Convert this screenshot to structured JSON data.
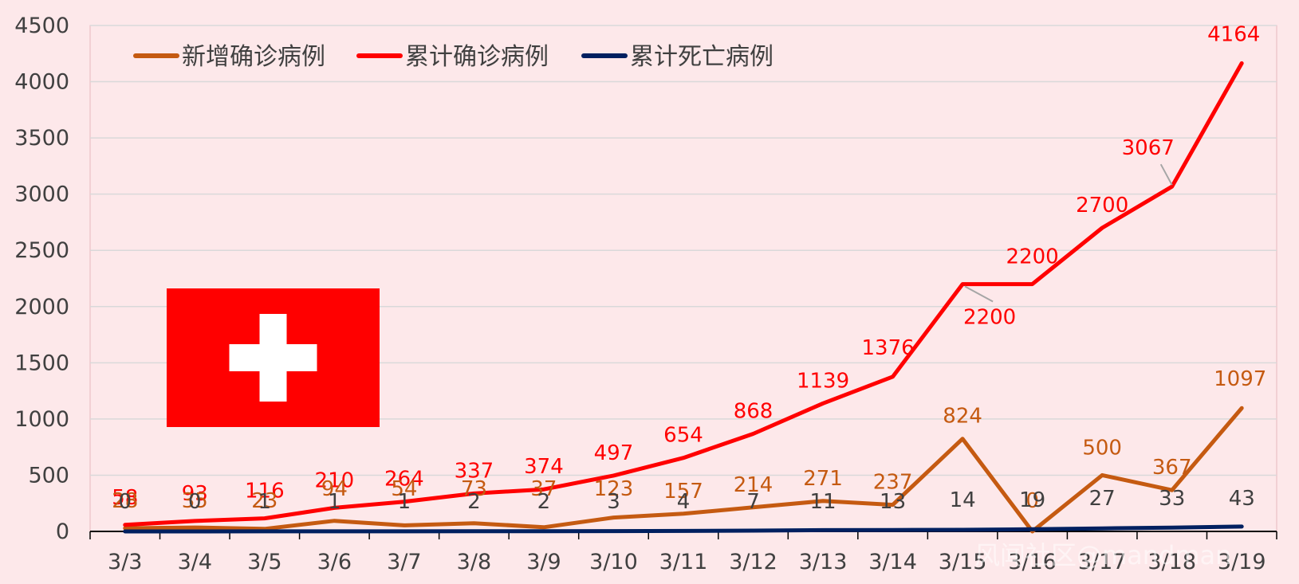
{
  "chart_data": {
    "type": "line",
    "title": "",
    "xlabel": "",
    "ylabel": "",
    "ylim": [
      0,
      4500
    ],
    "y_ticks": [
      0,
      500,
      1000,
      1500,
      2000,
      2500,
      3000,
      3500,
      4000,
      4500
    ],
    "grid": true,
    "legend_position": "top-left",
    "categories": [
      "3/3",
      "3/4",
      "3/5",
      "3/6",
      "3/7",
      "3/8",
      "3/9",
      "3/10",
      "3/11",
      "3/12",
      "3/13",
      "3/14",
      "3/15",
      "3/16",
      "3/17",
      "3/18",
      "3/19"
    ],
    "series": [
      {
        "name": "新增确诊病例",
        "color": "#c55a11",
        "values": [
          28,
          35,
          23,
          94,
          54,
          73,
          37,
          123,
          157,
          214,
          271,
          237,
          824,
          0,
          500,
          367,
          1097
        ],
        "labels": [
          "28",
          "35",
          "23",
          "94",
          "54",
          "73",
          "37",
          "123",
          "157",
          "214",
          "271",
          "237",
          "824",
          "0",
          "500",
          "367",
          "1097"
        ]
      },
      {
        "name": "累计确诊病例",
        "color": "#ff0000",
        "values": [
          58,
          93,
          116,
          210,
          264,
          337,
          374,
          497,
          654,
          868,
          1139,
          1376,
          2200,
          2200,
          2700,
          3067,
          4164
        ],
        "labels": [
          "58",
          "93",
          "116",
          "210",
          "264",
          "337",
          "374",
          "497",
          "654",
          "868",
          "1139",
          "1376",
          "2200",
          "2200",
          "2700",
          "3067",
          "4164"
        ]
      },
      {
        "name": "累计死亡病例",
        "color": "#002060",
        "values": [
          0,
          0,
          1,
          1,
          1,
          2,
          2,
          3,
          4,
          7,
          11,
          13,
          14,
          19,
          27,
          33,
          43
        ],
        "labels": [
          "0",
          "0",
          "1",
          "1",
          "1",
          "2",
          "2",
          "3",
          "4",
          "7",
          "11",
          "13",
          "14",
          "19",
          "27",
          "33",
          "43"
        ]
      }
    ]
  },
  "watermark": "风闻社区@mandman",
  "flag": {
    "field_color": "#ff0000",
    "cross_color": "#ffffff"
  }
}
